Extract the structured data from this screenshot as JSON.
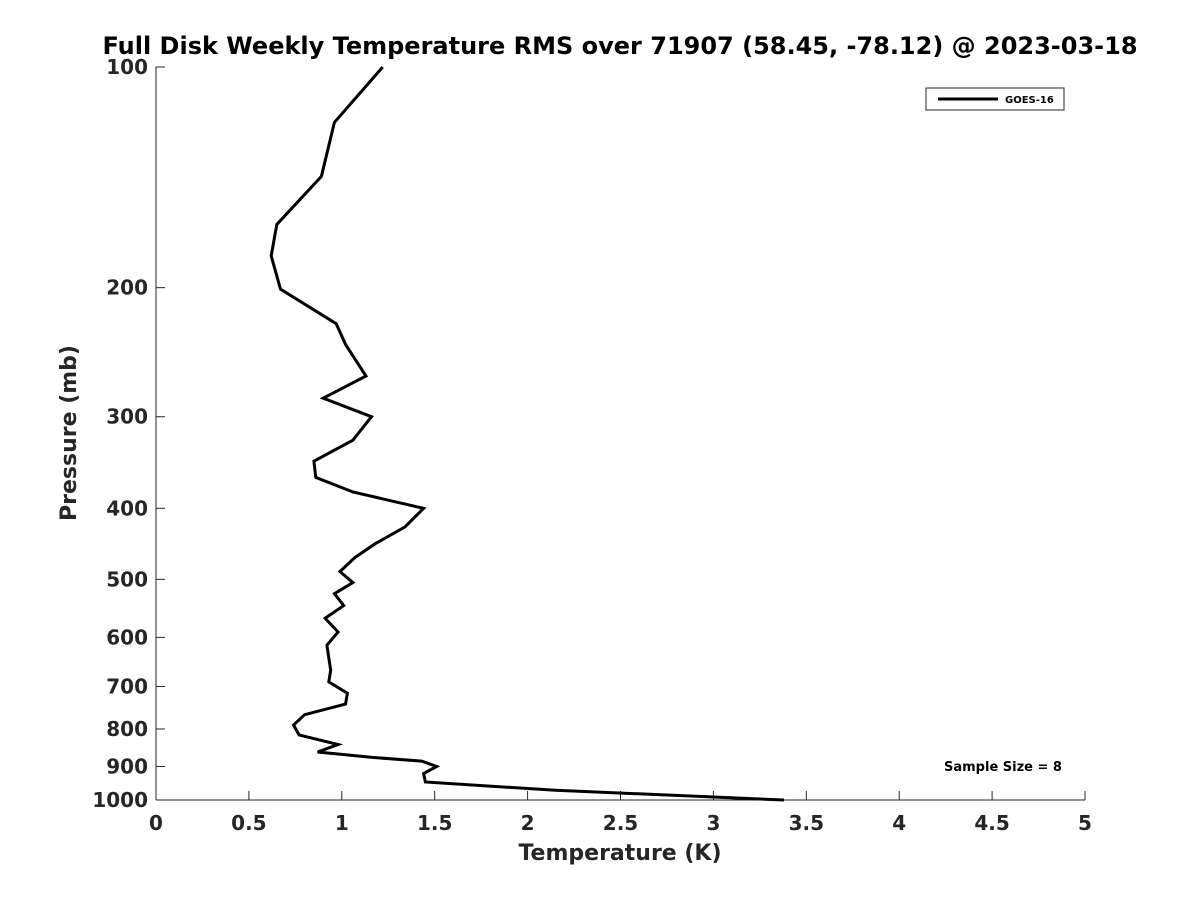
{
  "chart_data": {
    "type": "line",
    "title": "Full Disk Weekly Temperature RMS over 71907 (58.45, -78.12) @ 2023-03-18",
    "xlabel": "Temperature (K)",
    "ylabel": "Pressure (mb)",
    "xlim": [
      0,
      5
    ],
    "ylim": [
      100,
      1000
    ],
    "yscale": "log",
    "y_reversed": true,
    "x_ticks": [
      0,
      0.5,
      1,
      1.5,
      2,
      2.5,
      3,
      3.5,
      4,
      4.5,
      5
    ],
    "x_tick_labels": [
      "0",
      "0.5",
      "1",
      "1.5",
      "2",
      "2.5",
      "3",
      "3.5",
      "4",
      "4.5",
      "5"
    ],
    "y_ticks": [
      100,
      200,
      300,
      400,
      500,
      600,
      700,
      800,
      900,
      1000
    ],
    "y_tick_labels": [
      "100",
      "200",
      "300",
      "400",
      "500",
      "600",
      "700",
      "800",
      "900",
      "1000"
    ],
    "grid": false,
    "legend_position": "top-right",
    "annotation": "Sample Size = 8",
    "series": [
      {
        "name": "GOES-16",
        "color": "#000000",
        "x": [
          1.22,
          0.96,
          0.89,
          0.65,
          0.62,
          0.67,
          0.97,
          1.02,
          1.13,
          0.9,
          1.16,
          1.06,
          0.85,
          0.86,
          1.06,
          1.44,
          1.34,
          1.18,
          1.07,
          0.99,
          1.06,
          0.96,
          1.01,
          0.91,
          0.98,
          0.92,
          0.93,
          0.94,
          0.93,
          1.03,
          1.02,
          0.8,
          0.74,
          0.77,
          0.98,
          0.87,
          1.17,
          1.43,
          1.51,
          1.44,
          1.45,
          2.15,
          3.38
        ],
        "y": [
          100,
          119,
          141,
          164,
          181,
          201,
          224,
          239,
          264,
          283,
          300,
          323,
          345,
          363,
          380,
          400,
          424,
          447,
          467,
          488,
          505,
          523,
          543,
          565,
          590,
          615,
          640,
          665,
          690,
          715,
          740,
          765,
          790,
          815,
          840,
          860,
          875,
          885,
          900,
          920,
          945,
          970,
          1000
        ]
      }
    ]
  }
}
